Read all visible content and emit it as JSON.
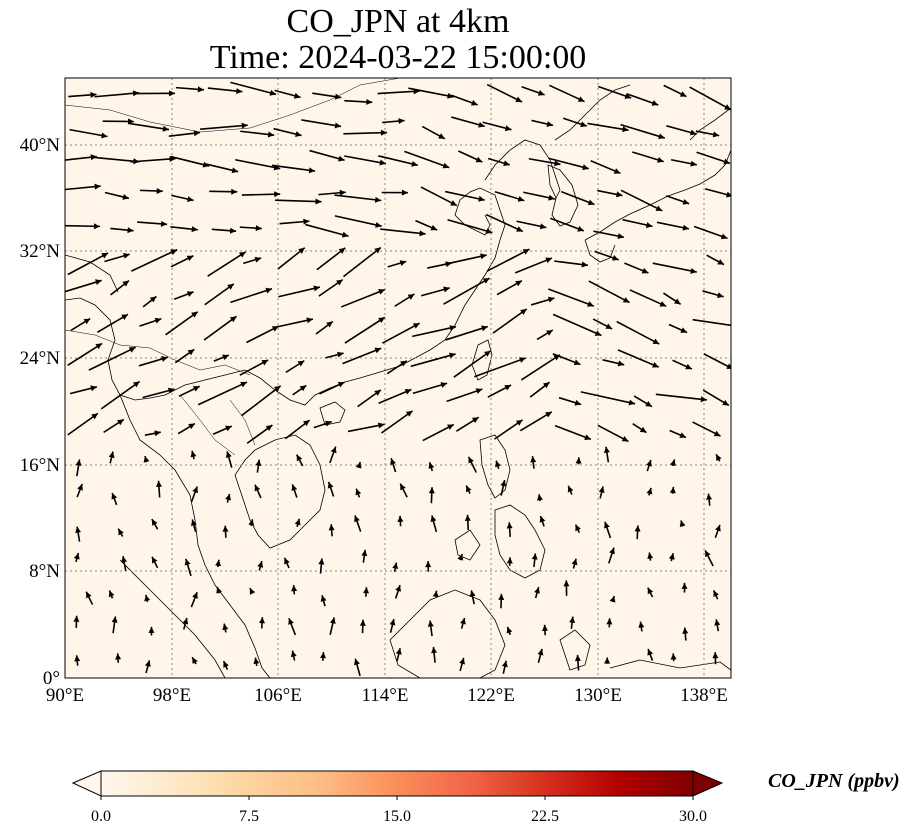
{
  "title": {
    "line1": "CO_JPN at 4km",
    "line2": "Time: 2024-03-22 15:00:00"
  },
  "map": {
    "lon_range": [
      90,
      140
    ],
    "lat_range": [
      0,
      45
    ],
    "lon_ticks": [
      "90°E",
      "98°E",
      "106°E",
      "114°E",
      "122°E",
      "130°E",
      "138°E"
    ],
    "lat_ticks": [
      "0°",
      "8°N",
      "16°N",
      "24°N",
      "32°N",
      "40°N"
    ],
    "field_value_approx": "near 0 ppbv over whole domain",
    "gridlines": "dotted",
    "wind_vectors_shown": true
  },
  "colorbar": {
    "label": "CO_JPN (ppbv)",
    "ticks": [
      "0.0",
      "7.5",
      "15.0",
      "22.5",
      "30.0"
    ],
    "range": [
      0,
      30
    ],
    "colormap": "OrRd",
    "extend": "both",
    "colors": [
      "#fff7ec",
      "#fee8c8",
      "#fdd49e",
      "#fdbb84",
      "#fc8d59",
      "#ef6548",
      "#d7301f",
      "#b30000",
      "#7f0000"
    ]
  },
  "colors": {
    "background_fill": "#fff5e8",
    "vector": "#000000",
    "coastline": "#000000",
    "grid": "#888888"
  }
}
